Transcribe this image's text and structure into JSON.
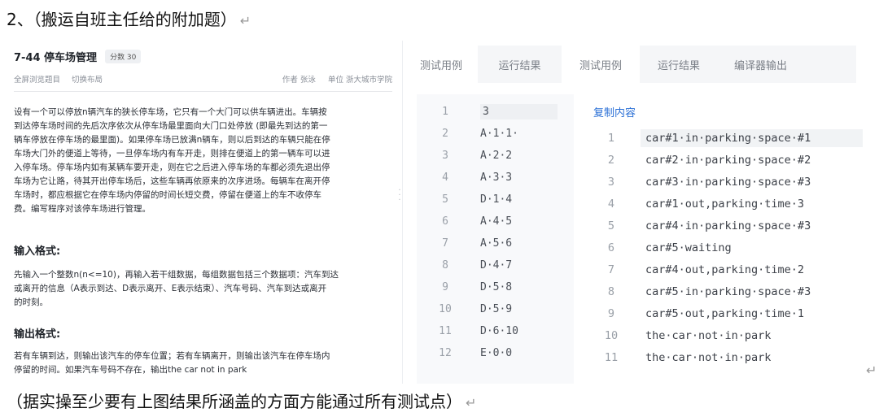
{
  "document": {
    "heading": "2、（搬运自班主任给的附加题）",
    "return_mark": "↵",
    "footnote": "（据实操至少要有上图结果所涵盖的方面方能通过所有测试点）"
  },
  "problem": {
    "title": "7-44 停车场管理",
    "score": "分数 30",
    "links": [
      "全屏浏览题目",
      "切换布局"
    ],
    "author": "作者 张泳",
    "unit": "单位 浙大城市学院",
    "description": [
      "设有一个可以停放n辆汽车的狭长停车场，它只有一个大门可以供车辆进出。车辆按",
      "到达停车场时间的先后次序依次从停车场最里面向大门口处停放 (即最先到达的第一",
      "辆车停放在停车场的最里面)。如果停车场已放满n辆车，则以后到达的车辆只能在停",
      "车场大门外的便道上等待，一旦停车场内有车开走，则排在便道上的第一辆车可以进",
      "入停车场。停车场内如有某辆车要开走，则在它之后进入停车场的车都必须先退出停",
      "车场为它让路，待其开出停车场后，这些车辆再依原来的次序进场。每辆车在离开停",
      "车场时，都应根据它在停车场内停留的时间长短交费，停留在便道上的车不收停车",
      "费。编写程序对该停车场进行管理。"
    ],
    "input_heading": "输入格式:",
    "input_text": [
      "先输入一个整数n(n<=10)，再输入若干组数据，每组数据包括三个数据项：汽车到达",
      "或离开的信息（A表示到达、D表示离开、E表示结束）、汽车号码、汽车到达或离开",
      "的时刻。"
    ],
    "output_heading": "输出格式:",
    "output_text": [
      "若有车辆到达，则输出该汽车的停车位置；若有车辆离开，则输出该汽车在停车场内",
      "停留的时间。如果汽车号码不存在，输出the car not in park"
    ]
  },
  "tabs": [
    {
      "label": "测试用例"
    },
    {
      "label": "运行结果"
    },
    {
      "label": "测试用例"
    },
    {
      "label": "运行结果"
    },
    {
      "label": "编译器输出"
    }
  ],
  "test_input": [
    {
      "n": "1",
      "text": "3"
    },
    {
      "n": "2",
      "text": "A·1·1·"
    },
    {
      "n": "3",
      "text": "A·2·2"
    },
    {
      "n": "4",
      "text": "A·3·3"
    },
    {
      "n": "5",
      "text": "D·1·4"
    },
    {
      "n": "6",
      "text": "A·4·5"
    },
    {
      "n": "7",
      "text": "A·5·6"
    },
    {
      "n": "8",
      "text": "D·4·7"
    },
    {
      "n": "9",
      "text": "D·5·8"
    },
    {
      "n": "10",
      "text": "D·5·9"
    },
    {
      "n": "11",
      "text": "D·6·10"
    },
    {
      "n": "12",
      "text": "E·0·0"
    }
  ],
  "copy_label": "复制内容",
  "test_output": [
    {
      "n": "1",
      "text": "car#1·in·parking·space·#1"
    },
    {
      "n": "2",
      "text": "car#2·in·parking·space·#2"
    },
    {
      "n": "3",
      "text": "car#3·in·parking·space·#3"
    },
    {
      "n": "4",
      "text": "car#1·out,parking·time·3"
    },
    {
      "n": "5",
      "text": "car#4·in·parking·space·#3"
    },
    {
      "n": "6",
      "text": "car#5·waiting"
    },
    {
      "n": "7",
      "text": "car#4·out,parking·time·2"
    },
    {
      "n": "8",
      "text": "car#5·in·parking·space·#3"
    },
    {
      "n": "9",
      "text": "car#5·out,parking·time·1"
    },
    {
      "n": "10",
      "text": "the·car·not·in·park"
    },
    {
      "n": "11",
      "text": "the·car·not·in·park"
    }
  ]
}
